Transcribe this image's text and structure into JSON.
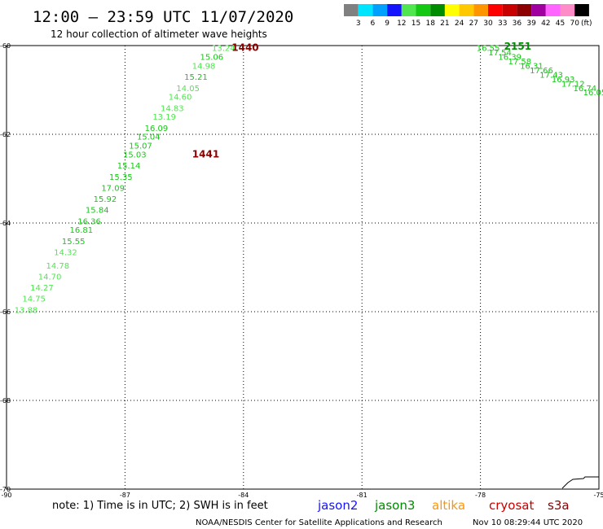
{
  "header": {
    "title": "12:00 – 23:59 UTC 11/07/2020",
    "subtitle": "12 hour collection of altimeter wave heights"
  },
  "color_scale": {
    "labels": [
      "3",
      "6",
      "9",
      "12",
      "15",
      "18",
      "21",
      "24",
      "27",
      "30",
      "33",
      "36",
      "39",
      "42",
      "45",
      "70"
    ],
    "unit": "(ft)",
    "colors": [
      "#808080",
      "#00e5ff",
      "#00a0ff",
      "#1414ff",
      "#50e650",
      "#14c814",
      "#008c00",
      "#ffff00",
      "#ffc800",
      "#ff9600",
      "#ff0000",
      "#c80000",
      "#8c0000",
      "#a000a0",
      "#ff64ff",
      "#ff8cc8",
      "#000000"
    ]
  },
  "footer": {
    "note": "note: 1) Time is in UTC; 2) SWH is in feet",
    "satellites": [
      {
        "name": "jason2",
        "color": "#1414ff"
      },
      {
        "name": "jason3",
        "color": "#008c00"
      },
      {
        "name": "altika",
        "color": "#ff9600"
      },
      {
        "name": "cryosat",
        "color": "#c80000"
      },
      {
        "name": "s3a",
        "color": "#8c0000"
      }
    ],
    "credit": "NOAA/NESDIS Center for Satellite Applications and Research",
    "timestamp": "Nov 10 08:29:44 UTC 2020"
  },
  "chart_data": {
    "type": "scatter",
    "xlim": [
      -90,
      -75
    ],
    "ylim": [
      -70,
      -60
    ],
    "x_ticks": [
      -90,
      -87,
      -84,
      -81,
      -78,
      -75
    ],
    "y_ticks": [
      -60,
      -62,
      -64,
      -66,
      -68,
      -70
    ],
    "grid": true,
    "series": [
      {
        "points": [
          {
            "x": -84.8,
            "y": -60.05,
            "v": "13.24",
            "c": "#50e650"
          },
          {
            "x": -85.1,
            "y": -60.25,
            "v": "15.06",
            "c": "#14c814"
          },
          {
            "x": -85.3,
            "y": -60.45,
            "v": "14.98",
            "c": "#50e650"
          },
          {
            "x": -85.5,
            "y": -60.7,
            "v": "15.21",
            "c": "#14c814"
          },
          {
            "x": -85.7,
            "y": -60.95,
            "v": "14.05",
            "c": "#50e650"
          },
          {
            "x": -85.9,
            "y": -61.15,
            "v": "14.60",
            "c": "#50e650"
          },
          {
            "x": -86.1,
            "y": -61.4,
            "v": "14.83",
            "c": "#50e650"
          },
          {
            "x": -86.3,
            "y": -61.6,
            "v": "13.19",
            "c": "#50e650"
          },
          {
            "x": -86.5,
            "y": -61.85,
            "v": "16.09",
            "c": "#14c814"
          },
          {
            "x": -86.7,
            "y": -62.05,
            "v": "15.04",
            "c": "#14c814"
          },
          {
            "x": -86.9,
            "y": -62.25,
            "v": "15.07",
            "c": "#14c814"
          },
          {
            "x": -87.05,
            "y": -62.45,
            "v": "15.03",
            "c": "#14c814"
          },
          {
            "x": -87.2,
            "y": -62.7,
            "v": "15.14",
            "c": "#14c814"
          },
          {
            "x": -87.4,
            "y": -62.95,
            "v": "15.35",
            "c": "#14c814"
          },
          {
            "x": -87.6,
            "y": -63.2,
            "v": "17.09",
            "c": "#14c814"
          },
          {
            "x": -87.8,
            "y": -63.45,
            "v": "15.92",
            "c": "#14c814"
          },
          {
            "x": -88.0,
            "y": -63.7,
            "v": "15.84",
            "c": "#14c814"
          },
          {
            "x": -88.2,
            "y": -63.95,
            "v": "16.36",
            "c": "#14c814"
          },
          {
            "x": -88.4,
            "y": -64.15,
            "v": "16.81",
            "c": "#14c814"
          },
          {
            "x": -88.6,
            "y": -64.4,
            "v": "15.55",
            "c": "#14c814"
          },
          {
            "x": -88.8,
            "y": -64.65,
            "v": "14.32",
            "c": "#50e650"
          },
          {
            "x": -89.0,
            "y": -64.95,
            "v": "14.78",
            "c": "#50e650"
          },
          {
            "x": -89.2,
            "y": -65.2,
            "v": "14.70",
            "c": "#50e650"
          },
          {
            "x": -89.4,
            "y": -65.45,
            "v": "14.27",
            "c": "#50e650"
          },
          {
            "x": -89.6,
            "y": -65.7,
            "v": "14.75",
            "c": "#50e650"
          },
          {
            "x": -89.8,
            "y": -65.95,
            "v": "13.88",
            "c": "#50e650"
          }
        ]
      },
      {
        "points": [
          {
            "x": -78.1,
            "y": -60.05,
            "v": "16.55",
            "c": "#14c814"
          },
          {
            "x": -77.8,
            "y": -60.15,
            "v": "17.54",
            "c": "#14c814"
          },
          {
            "x": -77.55,
            "y": -60.25,
            "v": "16.39",
            "c": "#14c814"
          },
          {
            "x": -77.3,
            "y": -60.35,
            "v": "17.58",
            "c": "#14c814"
          },
          {
            "x": -77.0,
            "y": -60.45,
            "v": "16.31",
            "c": "#14c814"
          },
          {
            "x": -76.75,
            "y": -60.55,
            "v": "17.66",
            "c": "#14c814"
          },
          {
            "x": -76.5,
            "y": -60.65,
            "v": "17.43",
            "c": "#14c814"
          },
          {
            "x": -76.2,
            "y": -60.75,
            "v": "16.93",
            "c": "#14c814"
          },
          {
            "x": -75.95,
            "y": -60.85,
            "v": "17.12",
            "c": "#14c814"
          },
          {
            "x": -75.65,
            "y": -60.95,
            "v": "16.74",
            "c": "#14c814"
          },
          {
            "x": -75.4,
            "y": -61.05,
            "v": "16.05",
            "c": "#14c814"
          }
        ]
      }
    ],
    "time_labels": [
      {
        "x": -84.3,
        "y": -60.05,
        "text": "1440",
        "c": "#8c0000"
      },
      {
        "x": -85.3,
        "y": -62.45,
        "text": "1441",
        "c": "#8c0000"
      },
      {
        "x": -77.4,
        "y": -60.02,
        "text": "2151",
        "c": "#008c00"
      }
    ]
  }
}
